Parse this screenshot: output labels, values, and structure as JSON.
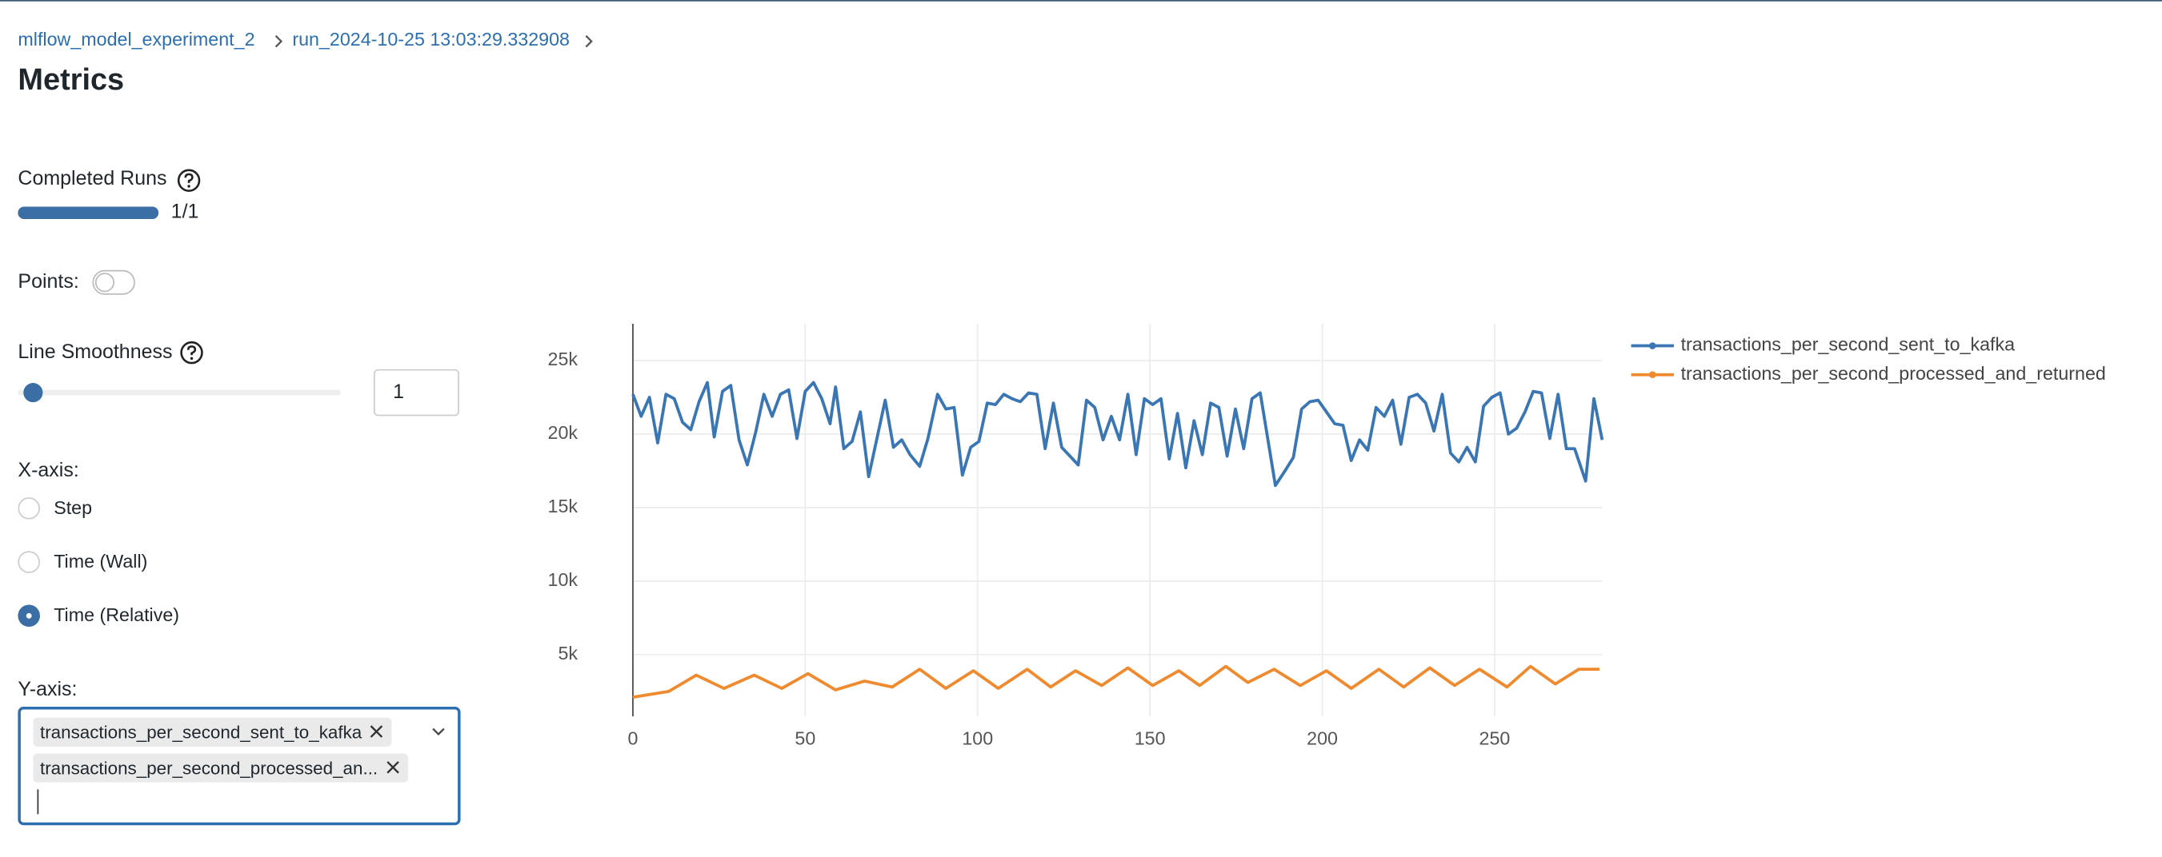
{
  "breadcrumb": [
    "mlflow_model_experiment_2",
    "run_2024-10-25 13:03:29.332908"
  ],
  "title": "Metrics",
  "controls": {
    "completed_runs": {
      "label": "Completed Runs",
      "value": "1/1"
    },
    "points": {
      "label": "Points:"
    },
    "line_smoothness": {
      "label": "Line Smoothness",
      "input": "1"
    },
    "x_axis": {
      "label": "X-axis:",
      "options": [
        "Step",
        "Time (Wall)",
        "Time (Relative)"
      ],
      "selected": 2
    },
    "y_axis": {
      "label": "Y-axis:",
      "tags": [
        "transactions_per_second_sent_to_kafka",
        "transactions_per_second_processed_an..."
      ]
    }
  },
  "chart_data": {
    "type": "line",
    "grid": true,
    "legend": "right",
    "xlim": [
      0,
      281.2
    ],
    "xticks": [
      0,
      50,
      100,
      150,
      200,
      250
    ],
    "ylim": [
      800,
      27500
    ],
    "yticks": [
      {
        "value": 5000,
        "label": "5k"
      },
      {
        "value": 10000,
        "label": "10k"
      },
      {
        "value": 15000,
        "label": "15k"
      },
      {
        "value": 20000,
        "label": "20k"
      },
      {
        "value": 25000,
        "label": "25k"
      }
    ],
    "series": [
      {
        "name": "transactions_per_second_sent_to_kafka",
        "color": "#3a76b4",
        "x": [
          0,
          2.4,
          4.8,
          7.2,
          9.6,
          12,
          14.4,
          16.8,
          19.2,
          21.6,
          23.6,
          26,
          28.4,
          30.8,
          33.2,
          35.6,
          38,
          40.4,
          42.8,
          45.2,
          47.6,
          50,
          52.4,
          54.8,
          57.2,
          58.8,
          61.2,
          63.6,
          66,
          68.4,
          70.8,
          73.2,
          75.6,
          78,
          80.4,
          83.2,
          85.6,
          88.4,
          90.8,
          93.2,
          95.6,
          98,
          100.4,
          102.8,
          105.2,
          107.6,
          110,
          112.4,
          114.8,
          117.2,
          119.6,
          122,
          124.4,
          126.8,
          129.2,
          131.6,
          134,
          136.4,
          138.8,
          141.2,
          143.6,
          146,
          148.4,
          150.8,
          153.2,
          155.6,
          158,
          160.4,
          162.8,
          165.2,
          167.6,
          170,
          172.4,
          174.8,
          177.2,
          179.6,
          182,
          186.4,
          189.2,
          191.6,
          194,
          196.4,
          198.8,
          201.2,
          203.6,
          206,
          208.4,
          210.8,
          213.2,
          215.6,
          218,
          220.4,
          222.8,
          225.2,
          227.6,
          230,
          232.4,
          234.8,
          237.2,
          239.6,
          242,
          244.4,
          246.8,
          249.2,
          251.6,
          254,
          256.4,
          258.8,
          261.2,
          263.6,
          266,
          268.4,
          270.8,
          273.2,
          276.4,
          278.8,
          281.2
        ],
        "values": [
          22700,
          21200,
          22500,
          19400,
          22700,
          22400,
          20800,
          20300,
          22200,
          23500,
          19800,
          22900,
          23300,
          19600,
          17900,
          20100,
          22700,
          21200,
          22700,
          23000,
          19700,
          22900,
          23500,
          22400,
          20700,
          23200,
          19000,
          19500,
          21500,
          17100,
          19700,
          22300,
          19100,
          19600,
          18600,
          17800,
          19700,
          22700,
          21700,
          21800,
          17200,
          19100,
          19500,
          22100,
          22000,
          22700,
          22400,
          22200,
          22800,
          22700,
          19000,
          22100,
          19100,
          18500,
          17900,
          22300,
          21800,
          19600,
          21200,
          19600,
          22700,
          18600,
          22400,
          22000,
          22400,
          18300,
          21400,
          17700,
          20900,
          18600,
          22100,
          21800,
          18500,
          21700,
          19000,
          22400,
          22800,
          16500,
          17500,
          18400,
          21700,
          22200,
          22300,
          21500,
          20700,
          20600,
          18200,
          19600,
          18900,
          21800,
          21200,
          22300,
          19300,
          22500,
          22700,
          22100,
          20200,
          22700,
          18700,
          18100,
          19100,
          18100,
          21900,
          22500,
          22800,
          20000,
          20400,
          21500,
          22900,
          22800,
          19700,
          22700,
          19000,
          19000,
          16800,
          22400,
          19600
        ]
      },
      {
        "name": "transactions_per_second_processed_and_returned",
        "color": "#f08a2e",
        "x": [
          0,
          10.4,
          18.4,
          26.4,
          35.2,
          43.2,
          50.8,
          58.8,
          67.2,
          75.2,
          83.2,
          90.8,
          98.8,
          106,
          114.4,
          121.2,
          128.4,
          136,
          143.6,
          150.8,
          158.4,
          164.4,
          172,
          178.4,
          186,
          193.6,
          201.2,
          208.4,
          216.4,
          223.6,
          231.2,
          238.4,
          245.6,
          253.6,
          260.4,
          267.6,
          274.4,
          280.4
        ],
        "values": [
          2100,
          2500,
          3600,
          2700,
          3600,
          2700,
          3700,
          2600,
          3200,
          2800,
          4000,
          2700,
          3900,
          2700,
          4000,
          2800,
          3900,
          2900,
          4100,
          2900,
          3900,
          2900,
          4200,
          3100,
          4000,
          2900,
          3900,
          2700,
          4000,
          2800,
          4100,
          2900,
          4000,
          2800,
          4200,
          3000,
          4000,
          4000
        ]
      }
    ]
  }
}
